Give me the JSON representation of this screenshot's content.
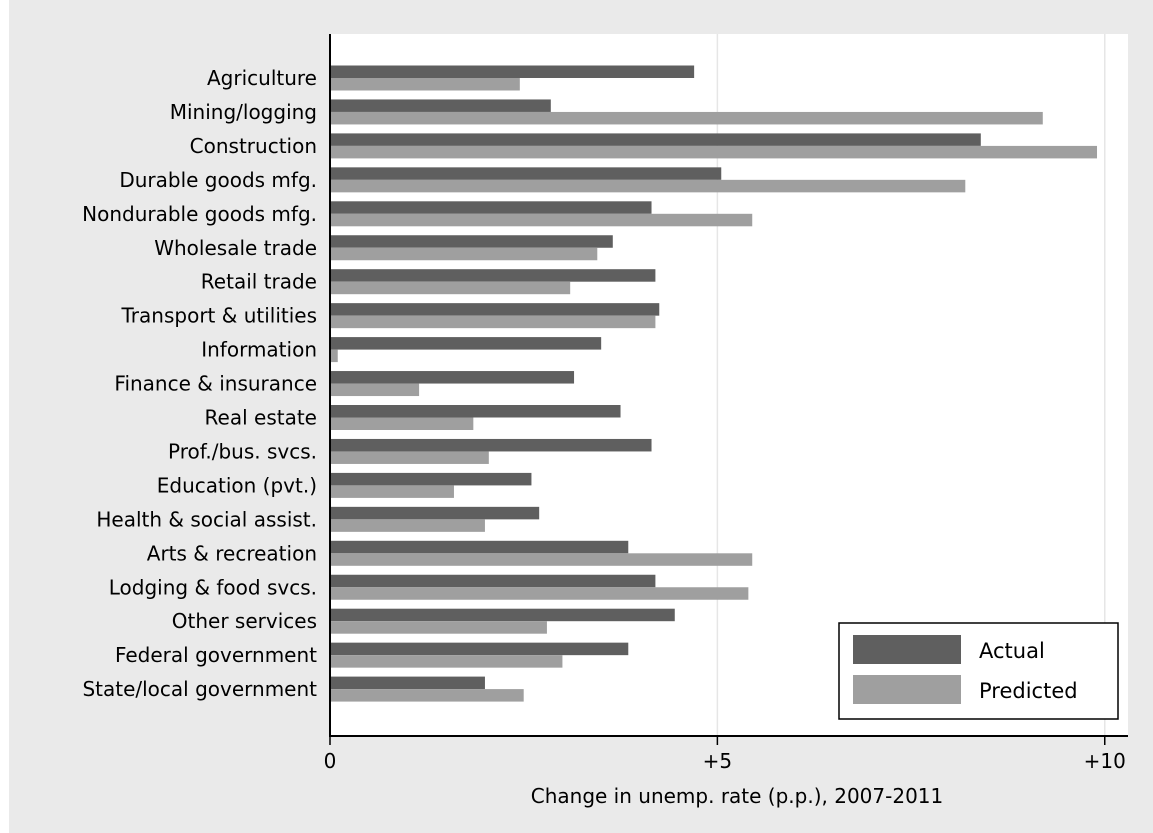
{
  "chart_data": {
    "type": "bar",
    "orientation": "horizontal",
    "categories": [
      "Agriculture",
      "Mining/logging",
      "Construction",
      "Durable goods mfg.",
      "Nondurable goods mfg.",
      "Wholesale trade",
      "Retail trade",
      "Transport & utilities",
      "Information",
      "Finance & insurance",
      "Real estate",
      "Prof./bus. svcs.",
      "Education (pvt.)",
      "Health & social assist.",
      "Arts & recreation",
      "Lodging & food svcs.",
      "Other services",
      "Federal government",
      "State/local government"
    ],
    "series": [
      {
        "name": "Actual",
        "color": "#5f5f5f",
        "values": [
          4.7,
          2.85,
          8.4,
          5.05,
          4.15,
          3.65,
          4.2,
          4.25,
          3.5,
          3.15,
          3.75,
          4.15,
          2.6,
          2.7,
          3.85,
          4.2,
          4.45,
          3.85,
          2.0
        ]
      },
      {
        "name": "Predicted",
        "color": "#9f9f9f",
        "values": [
          2.45,
          9.2,
          9.9,
          8.2,
          5.45,
          3.45,
          3.1,
          4.2,
          0.1,
          1.15,
          1.85,
          2.05,
          1.6,
          2.0,
          5.45,
          5.4,
          2.8,
          3.0,
          2.5
        ]
      }
    ],
    "xlabel": "Change in unemp. rate (p.p.), 2007-2011",
    "ylabel": "",
    "xlim": [
      0,
      10.3
    ],
    "x_ticks": [
      {
        "value": 0,
        "label": "0"
      },
      {
        "value": 5,
        "label": "+5"
      },
      {
        "value": 10,
        "label": "+10"
      }
    ],
    "grid": true,
    "legend": {
      "position": "bottom-right",
      "entries": [
        "Actual",
        "Predicted"
      ]
    }
  }
}
